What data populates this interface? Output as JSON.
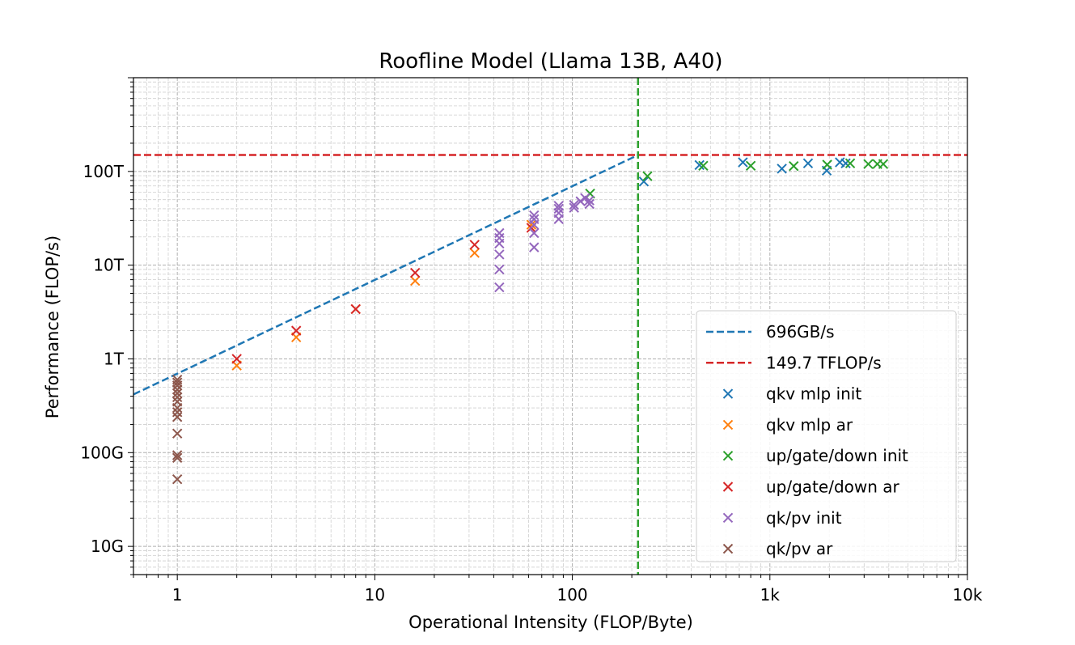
{
  "chart_data": {
    "type": "scatter",
    "title": "Roofline Model (Llama 13B, A40)",
    "xlabel": "Operational Intensity (FLOP/Byte)",
    "ylabel": "Performance (FLOP/s)",
    "xscale": "log",
    "yscale": "log",
    "xlim": [
      0.6,
      10000
    ],
    "ylim": [
      5000000000,
      1000000000000000
    ],
    "grid": "major-and-minor, dashed",
    "legend_position": "lower-right",
    "x_ticks": [
      {
        "value": 1,
        "label": "1"
      },
      {
        "value": 10,
        "label": "10"
      },
      {
        "value": 100,
        "label": "100"
      },
      {
        "value": 1000,
        "label": "1k"
      },
      {
        "value": 10000,
        "label": "10k"
      }
    ],
    "y_ticks": [
      {
        "value": 10000000000,
        "label": "10G"
      },
      {
        "value": 100000000000,
        "label": "100G"
      },
      {
        "value": 1000000000000,
        "label": "1T"
      },
      {
        "value": 10000000000000,
        "label": "10T"
      },
      {
        "value": 100000000000000,
        "label": "100T"
      }
    ],
    "lines": [
      {
        "name": "696GB/s",
        "color": "#1f77b4",
        "style": "dashed",
        "kind": "bandwidth-roof",
        "bandwidth": 696000000000,
        "x_range": [
          0.6,
          215
        ]
      },
      {
        "name": "149.7 TFLOP/s",
        "color": "#d62728",
        "style": "dashed",
        "kind": "horizontal",
        "y": 149700000000000
      }
    ],
    "ridge_line": {
      "color": "#2ca02c",
      "style": "dashed",
      "x": 215
    },
    "series": [
      {
        "name": "qkv mlp init",
        "color": "#1f77b4",
        "points": [
          [
            230,
            78000000000000
          ],
          [
            440,
            117000000000000
          ],
          [
            730,
            125000000000000
          ],
          [
            1150,
            107000000000000
          ],
          [
            1560,
            122000000000000
          ],
          [
            1940,
            102000000000000
          ],
          [
            2260,
            125000000000000
          ],
          [
            2420,
            122000000000000
          ]
        ]
      },
      {
        "name": "qkv mlp ar",
        "color": "#ff7f0e",
        "points": [
          [
            2,
            850000000000
          ],
          [
            4,
            1700000000000
          ],
          [
            8,
            3400000000000
          ],
          [
            16,
            6800000000000
          ],
          [
            32,
            13500000000000
          ],
          [
            62,
            27000000000000
          ]
        ]
      },
      {
        "name": "up/gate/down init",
        "color": "#2ca02c",
        "points": [
          [
            123,
            58000000000000
          ],
          [
            240,
            89000000000000
          ],
          [
            460,
            115000000000000
          ],
          [
            800,
            115000000000000
          ],
          [
            1320,
            114000000000000
          ],
          [
            1950,
            118000000000000
          ],
          [
            2550,
            122000000000000
          ],
          [
            3150,
            120000000000000
          ],
          [
            3500,
            120000000000000
          ],
          [
            3750,
            120000000000000
          ]
        ]
      },
      {
        "name": "up/gate/down ar",
        "color": "#d62728",
        "points": [
          [
            2,
            1000000000000
          ],
          [
            4,
            2000000000000
          ],
          [
            8,
            3400000000000
          ],
          [
            16,
            8300000000000
          ],
          [
            32,
            16500000000000
          ],
          [
            62,
            25000000000000
          ]
        ]
      },
      {
        "name": "qk/pv init",
        "color": "#9467bd",
        "points": [
          [
            42.7,
            5800000000000
          ],
          [
            42.7,
            9000000000000
          ],
          [
            42.7,
            13000000000000
          ],
          [
            42.7,
            17000000000000
          ],
          [
            42.7,
            19500000000000
          ],
          [
            42.7,
            22000000000000
          ],
          [
            64,
            15500000000000
          ],
          [
            64,
            22000000000000
          ],
          [
            64,
            27000000000000
          ],
          [
            64,
            31000000000000
          ],
          [
            64,
            34000000000000
          ],
          [
            85.3,
            31000000000000
          ],
          [
            85.3,
            36000000000000
          ],
          [
            85.3,
            40000000000000
          ],
          [
            85.3,
            43000000000000
          ],
          [
            102,
            41000000000000
          ],
          [
            102,
            44000000000000
          ],
          [
            110,
            48000000000000
          ],
          [
            116,
            52000000000000
          ],
          [
            122,
            45000000000000
          ],
          [
            122,
            49000000000000
          ]
        ]
      },
      {
        "name": "qk/pv ar",
        "color": "#8c564b",
        "points": [
          [
            1,
            52000000000
          ],
          [
            1,
            88000000000
          ],
          [
            1,
            94000000000
          ],
          [
            1,
            160000000000
          ],
          [
            1,
            240000000000
          ],
          [
            1,
            270000000000
          ],
          [
            1,
            300000000000
          ],
          [
            1,
            350000000000
          ],
          [
            1,
            390000000000
          ],
          [
            1,
            430000000000
          ],
          [
            1,
            470000000000
          ],
          [
            1,
            520000000000
          ],
          [
            1,
            560000000000
          ],
          [
            1,
            600000000000
          ]
        ]
      }
    ]
  }
}
